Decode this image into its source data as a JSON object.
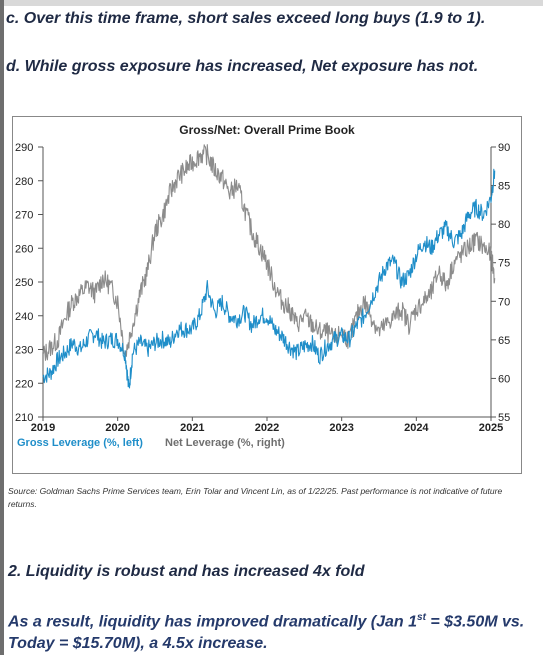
{
  "notes": {
    "line_c": "c. Over this time frame, short sales exceed long buys (1.9 to 1).",
    "line_d": "d. While gross exposure has increased, Net exposure has not."
  },
  "source": "Source: Goldman Sachs Prime Services team, Erin Tolar and Vincent Lin,  as of 1/22/25. Past performance is not indicative of future returns.",
  "section2": {
    "heading": "2. Liquidity is robust and has increased 4x fold",
    "result_pre": "As a result, liquidity has improved dramatically (Jan 1",
    "result_sup": "st",
    "result_post": " = $3.50M vs. Today = $15.70M), a 4.5x increase."
  },
  "chart_data": {
    "type": "line",
    "title": "Gross/Net: Overall Prime Book",
    "x_ticks": [
      "2019",
      "2020",
      "2021",
      "2022",
      "2023",
      "2024",
      "2025"
    ],
    "xlim": [
      2019,
      2025
    ],
    "left_axis": {
      "ylim": [
        210,
        290
      ],
      "ticks": [
        210,
        220,
        230,
        240,
        250,
        260,
        270,
        280,
        290
      ]
    },
    "right_axis": {
      "ylim": [
        55,
        90
      ],
      "ticks": [
        55,
        60,
        65,
        70,
        75,
        80,
        85,
        90
      ]
    },
    "legend": [
      {
        "label": "Gross Leverage (%, left)",
        "color": "#1f8ec9"
      },
      {
        "label": "Net Leverage (%, right)",
        "color": "#8c8c8c"
      }
    ],
    "series": [
      {
        "name": "Gross Leverage (%, left)",
        "axis": "left",
        "color": "#1f8ec9",
        "x": [
          2019.0,
          2019.1,
          2019.2,
          2019.3,
          2019.4,
          2019.5,
          2019.6,
          2019.7,
          2019.8,
          2019.9,
          2020.0,
          2020.1,
          2020.15,
          2020.2,
          2020.3,
          2020.4,
          2020.5,
          2020.6,
          2020.7,
          2020.8,
          2020.9,
          2021.0,
          2021.1,
          2021.2,
          2021.3,
          2021.4,
          2021.5,
          2021.6,
          2021.7,
          2021.8,
          2021.9,
          2022.0,
          2022.1,
          2022.2,
          2022.3,
          2022.4,
          2022.5,
          2022.6,
          2022.7,
          2022.8,
          2022.9,
          2023.0,
          2023.1,
          2023.2,
          2023.3,
          2023.4,
          2023.5,
          2023.6,
          2023.7,
          2023.8,
          2023.9,
          2024.0,
          2024.1,
          2024.2,
          2024.3,
          2024.4,
          2024.5,
          2024.6,
          2024.7,
          2024.8,
          2024.9,
          2025.0,
          2025.05
        ],
        "y": [
          222,
          223,
          227,
          229,
          232,
          230,
          233,
          235,
          232,
          233,
          233,
          229,
          218,
          229,
          232,
          230,
          232,
          233,
          232,
          236,
          236,
          236,
          240,
          248,
          241,
          244,
          240,
          239,
          241,
          237,
          240,
          240,
          236,
          234,
          231,
          229,
          231,
          232,
          228,
          231,
          233,
          234,
          233,
          237,
          240,
          245,
          250,
          255,
          256,
          250,
          252,
          258,
          262,
          260,
          264,
          266,
          262,
          264,
          270,
          272,
          270,
          275,
          283
        ]
      },
      {
        "name": "Net Leverage (%, right)",
        "axis": "right",
        "color": "#8c8c8c",
        "x": [
          2019.0,
          2019.1,
          2019.2,
          2019.3,
          2019.4,
          2019.5,
          2019.6,
          2019.7,
          2019.8,
          2019.9,
          2020.0,
          2020.1,
          2020.2,
          2020.3,
          2020.4,
          2020.5,
          2020.6,
          2020.7,
          2020.8,
          2020.9,
          2021.0,
          2021.1,
          2021.2,
          2021.3,
          2021.4,
          2021.5,
          2021.6,
          2021.7,
          2021.8,
          2021.9,
          2022.0,
          2022.1,
          2022.2,
          2022.3,
          2022.4,
          2022.5,
          2022.6,
          2022.7,
          2022.8,
          2022.9,
          2023.0,
          2023.1,
          2023.2,
          2023.3,
          2023.4,
          2023.5,
          2023.6,
          2023.7,
          2023.8,
          2023.9,
          2024.0,
          2024.1,
          2024.2,
          2024.3,
          2024.4,
          2024.5,
          2024.6,
          2024.7,
          2024.8,
          2024.9,
          2025.0,
          2025.05
        ],
        "y": [
          63,
          64,
          65,
          68,
          70,
          71,
          72,
          71,
          73,
          72,
          70,
          63,
          67,
          71,
          74,
          79,
          81,
          84,
          86,
          87,
          88,
          89,
          89,
          87,
          86,
          84,
          85,
          82,
          79,
          77,
          75,
          72,
          70,
          69,
          67,
          68,
          67,
          66,
          66,
          65,
          66,
          65,
          68,
          70,
          68,
          66,
          67,
          68,
          69,
          67,
          69,
          70,
          71,
          74,
          72,
          75,
          76,
          77,
          78,
          77,
          76,
          73
        ]
      }
    ]
  }
}
